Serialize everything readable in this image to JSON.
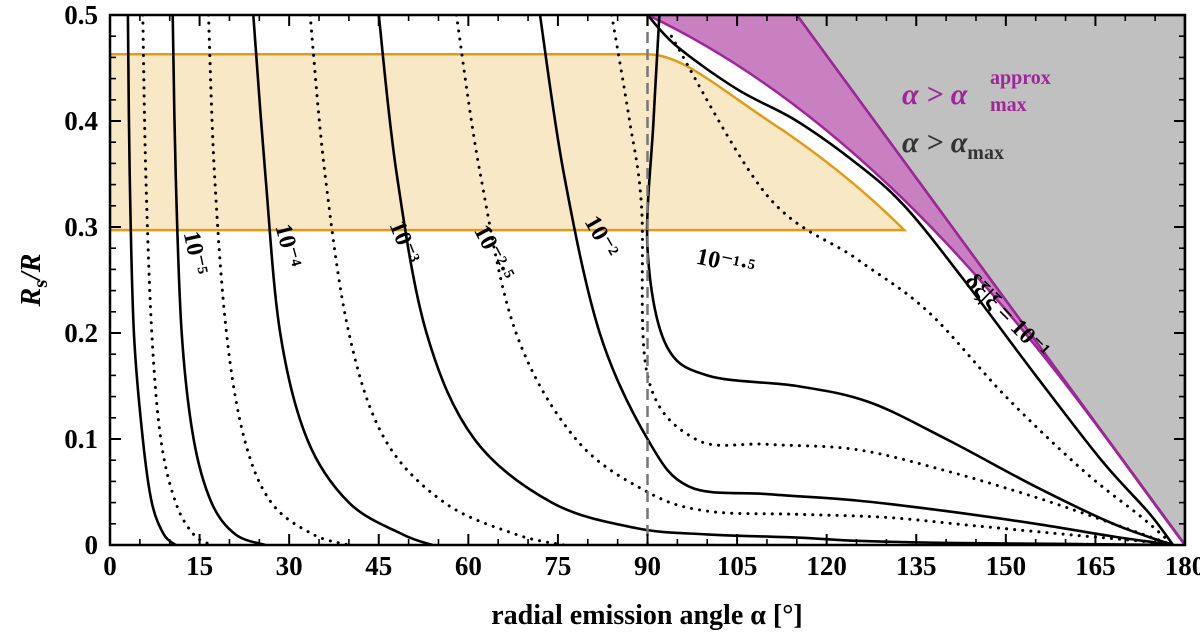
{
  "chart_data": {
    "type": "line",
    "xlabel": "radial emission angle α [°]",
    "ylabel": "Rs/R",
    "xlim": [
      0,
      180
    ],
    "ylim": [
      0,
      0.5
    ],
    "x_ticks": [
      "0",
      "15",
      "30",
      "45",
      "60",
      "75",
      "90",
      "105",
      "120",
      "135",
      "150",
      "165",
      "180"
    ],
    "y_ticks": [
      "0",
      "0.1",
      "0.2",
      "0.3",
      "0.4",
      "0.5"
    ],
    "grid": false,
    "vertical_reference_line_x": 90,
    "colors": {
      "region_max": "#c0c0c0",
      "region_approx": "#c880c0",
      "band_fill": "#f9e8c6",
      "band_edge": "#e39b12",
      "approx_line": "#a0249a"
    },
    "regions": [
      {
        "name": "α > α_max",
        "boundary_x_at_y_0.5": 115,
        "boundary_x_at_y_0": 180
      },
      {
        "name": "α > α_max^approx",
        "boundary_x_at_y_0.5": 90,
        "boundary_x_at_y_0": 180
      }
    ],
    "band": {
      "y_range": [
        0.297,
        0.463
      ],
      "x_range": [
        0,
        133
      ]
    },
    "contours": [
      {
        "label": "10⁻⁵",
        "style": "solid",
        "points": [
          [
            3,
            0.5
          ],
          [
            3.3,
            0.35
          ],
          [
            4,
            0.2
          ],
          [
            5.5,
            0.1
          ],
          [
            7,
            0.04
          ],
          [
            9,
            0.01
          ],
          [
            11,
            0
          ]
        ]
      },
      {
        "label": "",
        "style": "dotted",
        "points": [
          [
            5.5,
            0.5
          ],
          [
            6,
            0.35
          ],
          [
            7,
            0.2
          ],
          [
            8.5,
            0.1
          ],
          [
            11,
            0.04
          ],
          [
            14,
            0.01
          ],
          [
            17,
            0
          ]
        ]
      },
      {
        "label": "10⁻⁴",
        "style": "solid",
        "points": [
          [
            10.5,
            0.5
          ],
          [
            11,
            0.35
          ],
          [
            12,
            0.2
          ],
          [
            14,
            0.1
          ],
          [
            17,
            0.04
          ],
          [
            21,
            0.01
          ],
          [
            26,
            0
          ]
        ]
      },
      {
        "label": "",
        "style": "dotted",
        "points": [
          [
            16.5,
            0.5
          ],
          [
            17.5,
            0.35
          ],
          [
            19.5,
            0.2
          ],
          [
            22.5,
            0.1
          ],
          [
            27,
            0.04
          ],
          [
            34,
            0.01
          ],
          [
            40,
            0
          ]
        ]
      },
      {
        "label": "10⁻³",
        "style": "solid",
        "points": [
          [
            24,
            0.5
          ],
          [
            26,
            0.35
          ],
          [
            28.5,
            0.2
          ],
          [
            33,
            0.1
          ],
          [
            40,
            0.04
          ],
          [
            49,
            0.01
          ],
          [
            54,
            0
          ]
        ]
      },
      {
        "label": "",
        "style": "dotted",
        "points": [
          [
            33.5,
            0.5
          ],
          [
            36,
            0.35
          ],
          [
            40,
            0.2
          ],
          [
            46,
            0.1
          ],
          [
            56,
            0.04
          ],
          [
            68,
            0.01
          ],
          [
            76,
            0
          ]
        ]
      },
      {
        "label": "10⁻²·⁵",
        "style": "solid",
        "points": [
          [
            45,
            0.5
          ],
          [
            48,
            0.35
          ],
          [
            53,
            0.2
          ],
          [
            61,
            0.1
          ],
          [
            74,
            0.04
          ],
          [
            88,
            0.016
          ],
          [
            100,
            0.01
          ],
          [
            115,
            0.007
          ],
          [
            125,
            0.004
          ],
          [
            140,
            0.002
          ],
          [
            160,
            0.001
          ],
          [
            178,
            0
          ]
        ]
      },
      {
        "label": "",
        "style": "dotted",
        "points": [
          [
            58,
            0.5
          ],
          [
            62,
            0.35
          ],
          [
            68,
            0.2
          ],
          [
            78,
            0.1
          ],
          [
            90,
            0.05
          ],
          [
            100,
            0.032
          ],
          [
            115,
            0.029
          ],
          [
            130,
            0.026
          ],
          [
            145,
            0.018
          ],
          [
            160,
            0.01
          ],
          [
            172,
            0.004
          ],
          [
            178,
            0
          ]
        ]
      },
      {
        "label": "10⁻²",
        "style": "solid",
        "points": [
          [
            72,
            0.5
          ],
          [
            76,
            0.35
          ],
          [
            82,
            0.2
          ],
          [
            90,
            0.1
          ],
          [
            97,
            0.055
          ],
          [
            110,
            0.048
          ],
          [
            125,
            0.042
          ],
          [
            140,
            0.032
          ],
          [
            155,
            0.02
          ],
          [
            168,
            0.008
          ],
          [
            178,
            0
          ]
        ]
      },
      {
        "label": "",
        "style": "dotted",
        "points": [
          [
            84,
            0.5
          ],
          [
            87,
            0.4
          ],
          [
            89,
            0.32
          ],
          [
            90,
            0.16
          ],
          [
            98,
            0.1
          ],
          [
            110,
            0.095
          ],
          [
            125,
            0.09
          ],
          [
            140,
            0.07
          ],
          [
            155,
            0.045
          ],
          [
            168,
            0.02
          ],
          [
            178,
            0
          ]
        ]
      },
      {
        "label": "10⁻¹·⁵",
        "style": "solid",
        "points": [
          [
            92,
            0.5
          ],
          [
            91,
            0.4
          ],
          [
            90,
            0.28
          ],
          [
            93,
            0.19
          ],
          [
            100,
            0.16
          ],
          [
            115,
            0.15
          ],
          [
            127,
            0.135
          ],
          [
            140,
            0.1
          ],
          [
            155,
            0.055
          ],
          [
            168,
            0.02
          ],
          [
            178,
            0
          ]
        ]
      },
      {
        "label": "",
        "style": "dotted",
        "points": [
          [
            94,
            0.48
          ],
          [
            110,
            0.33
          ],
          [
            125,
            0.27
          ],
          [
            137,
            0.22
          ],
          [
            150,
            0.14
          ],
          [
            163,
            0.07
          ],
          [
            173,
            0.025
          ],
          [
            178,
            0
          ]
        ]
      },
      {
        "label": "δξ|ξ = 10⁻¹",
        "style": "solid",
        "points": [
          [
            90,
            0.5
          ],
          [
            95,
            0.47
          ],
          [
            105,
            0.43
          ],
          [
            115,
            0.4
          ],
          [
            125,
            0.36
          ],
          [
            133,
            0.32
          ],
          [
            143,
            0.25
          ],
          [
            155,
            0.16
          ],
          [
            166,
            0.08
          ],
          [
            174,
            0.03
          ],
          [
            178,
            0
          ]
        ]
      }
    ],
    "legend": [
      {
        "text": "α > α",
        "sup": "approx",
        "sub": "max",
        "color": "#a0249a"
      },
      {
        "text": "α > α",
        "sub": "max",
        "color": "#333333"
      }
    ]
  }
}
